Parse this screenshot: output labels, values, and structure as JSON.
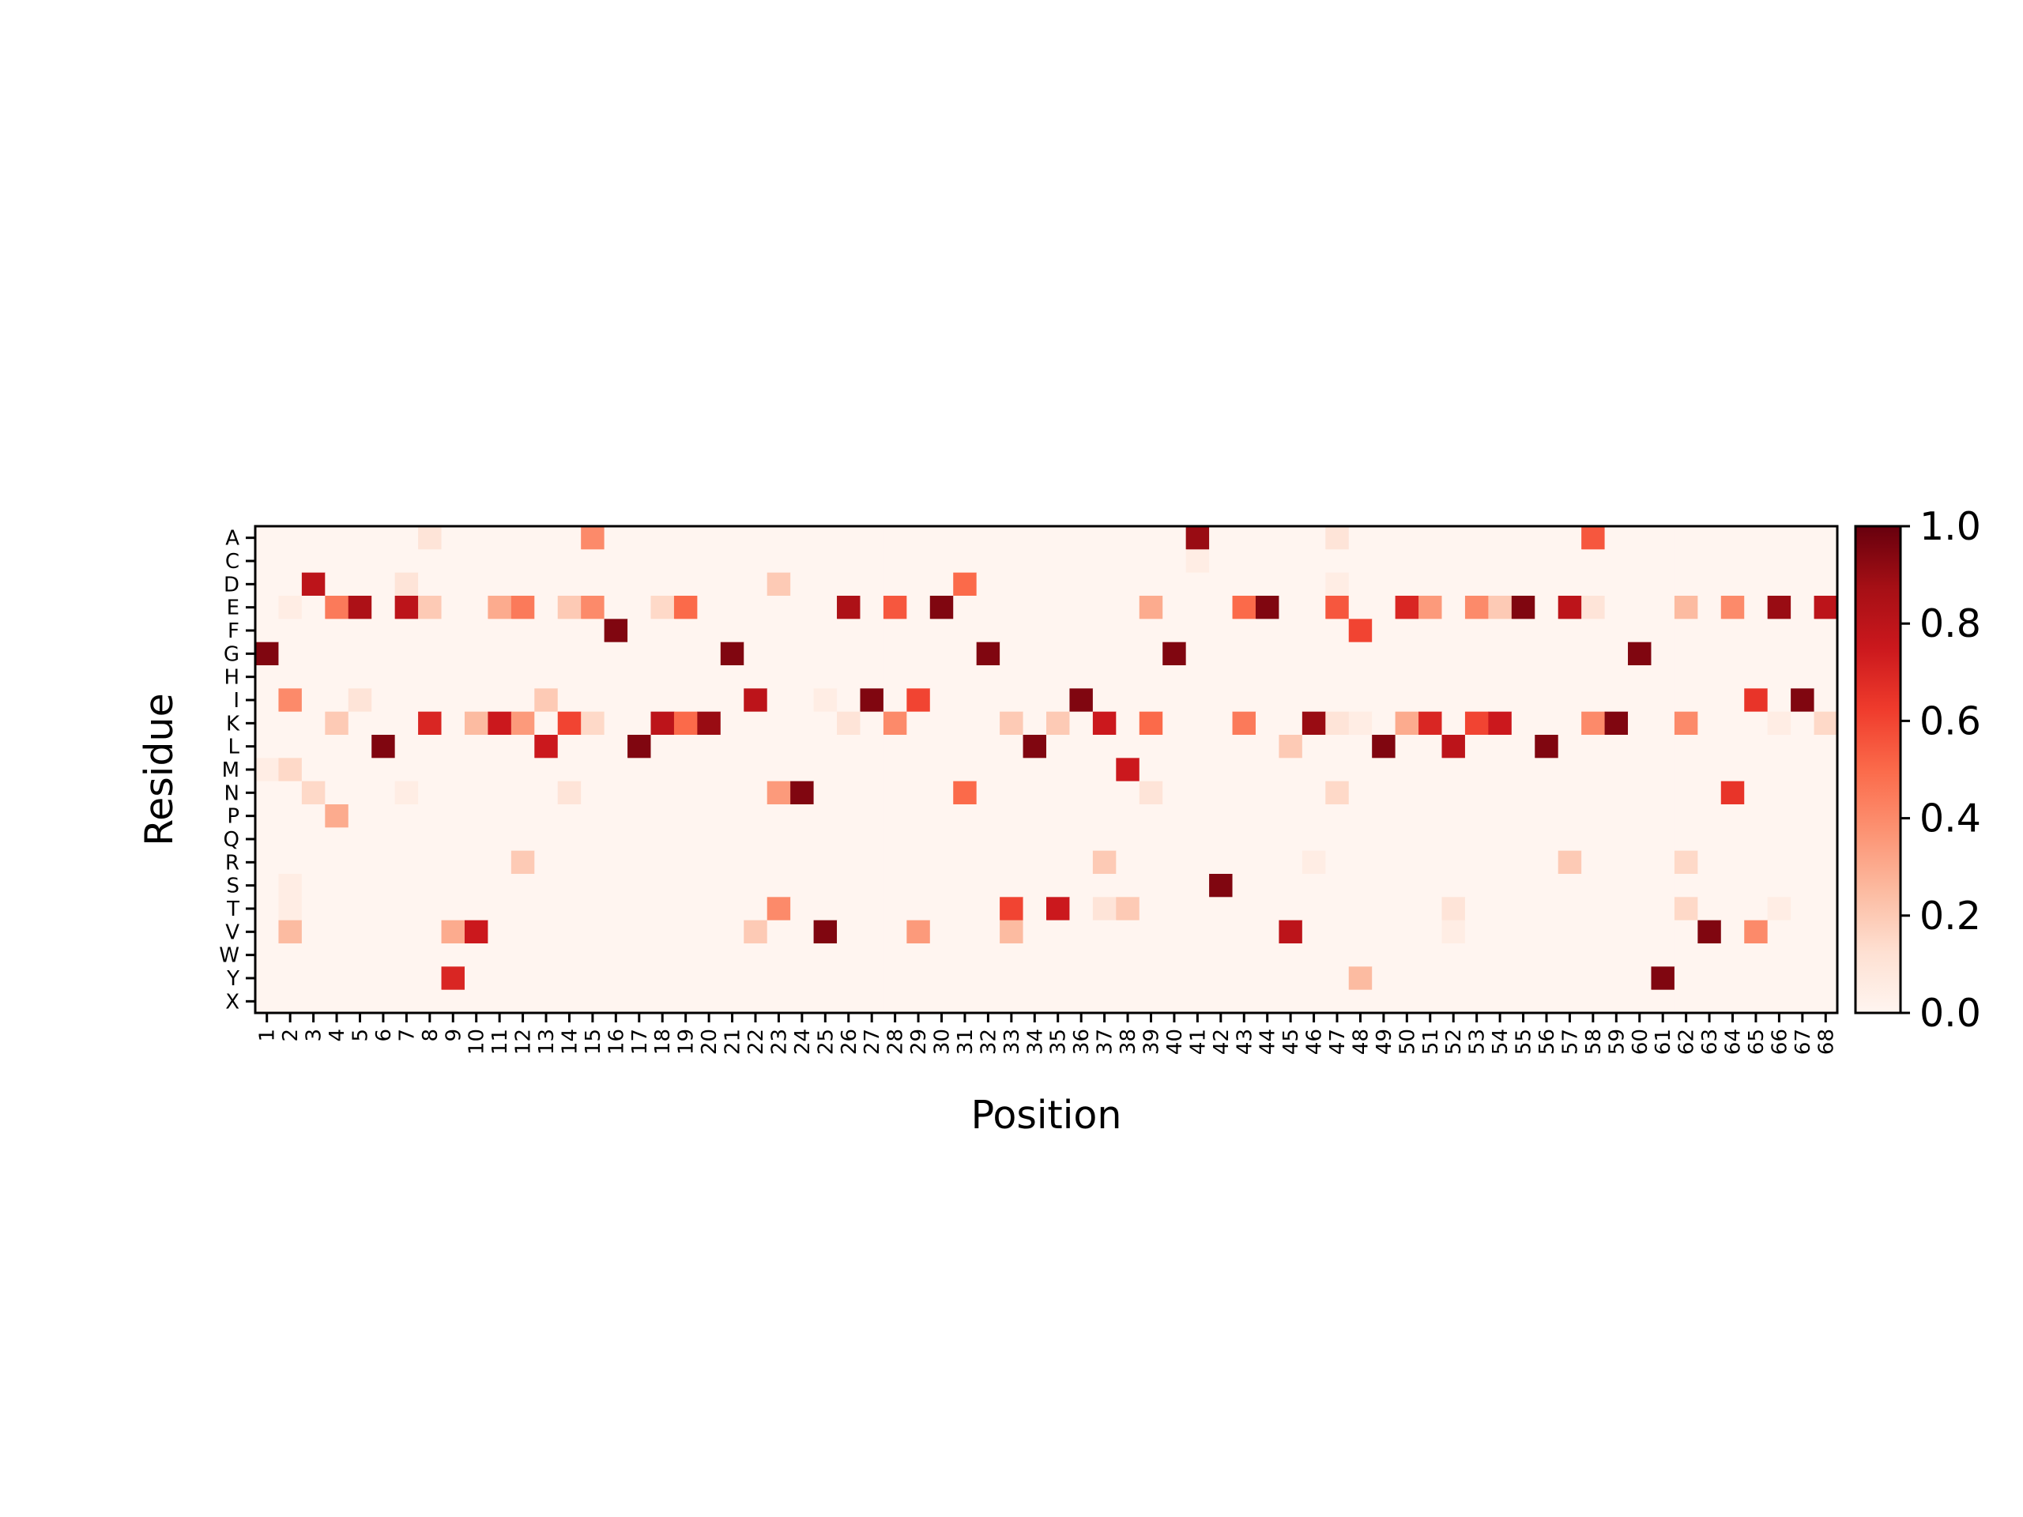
{
  "chart_data": {
    "type": "heatmap",
    "title": "",
    "xlabel": "Position",
    "ylabel": "Residue",
    "x_categories": [
      "1",
      "2",
      "3",
      "4",
      "5",
      "6",
      "7",
      "8",
      "9",
      "10",
      "11",
      "12",
      "13",
      "14",
      "15",
      "16",
      "17",
      "18",
      "19",
      "20",
      "21",
      "22",
      "23",
      "24",
      "25",
      "26",
      "27",
      "28",
      "29",
      "30",
      "31",
      "32",
      "33",
      "34",
      "35",
      "36",
      "37",
      "38",
      "39",
      "40",
      "41",
      "42",
      "43",
      "44",
      "45",
      "46",
      "47",
      "48",
      "49",
      "50",
      "51",
      "52",
      "53",
      "54",
      "55",
      "56",
      "57",
      "58",
      "59",
      "60",
      "61",
      "62",
      "63",
      "64",
      "65",
      "66",
      "67",
      "68"
    ],
    "y_categories": [
      "A",
      "C",
      "D",
      "E",
      "F",
      "G",
      "H",
      "I",
      "K",
      "L",
      "M",
      "N",
      "P",
      "Q",
      "R",
      "S",
      "T",
      "V",
      "W",
      "Y",
      "X"
    ],
    "colormap": [
      "#fff5f0",
      "#fee0d2",
      "#fcbba1",
      "#fc9272",
      "#fb6a4a",
      "#ef3b2c",
      "#cb181d",
      "#a50f15",
      "#67000d"
    ],
    "value_range": [
      0,
      1
    ],
    "colorbar_ticks": [
      "0.0",
      "0.2",
      "0.4",
      "0.6",
      "0.8",
      "1.0"
    ],
    "sparse_cells": [
      {
        "x": "1",
        "y": "G",
        "v": 0.95
      },
      {
        "x": "1",
        "y": "M",
        "v": 0.05
      },
      {
        "x": "2",
        "y": "E",
        "v": 0.05
      },
      {
        "x": "2",
        "y": "I",
        "v": 0.4
      },
      {
        "x": "2",
        "y": "M",
        "v": 0.15
      },
      {
        "x": "2",
        "y": "S",
        "v": 0.05
      },
      {
        "x": "2",
        "y": "T",
        "v": 0.05
      },
      {
        "x": "2",
        "y": "V",
        "v": 0.25
      },
      {
        "x": "3",
        "y": "D",
        "v": 0.8
      },
      {
        "x": "3",
        "y": "N",
        "v": 0.15
      },
      {
        "x": "4",
        "y": "E",
        "v": 0.45
      },
      {
        "x": "4",
        "y": "K",
        "v": 0.2
      },
      {
        "x": "4",
        "y": "P",
        "v": 0.3
      },
      {
        "x": "5",
        "y": "E",
        "v": 0.85
      },
      {
        "x": "5",
        "y": "I",
        "v": 0.1
      },
      {
        "x": "6",
        "y": "L",
        "v": 0.95
      },
      {
        "x": "7",
        "y": "D",
        "v": 0.1
      },
      {
        "x": "7",
        "y": "E",
        "v": 0.8
      },
      {
        "x": "7",
        "y": "N",
        "v": 0.05
      },
      {
        "x": "8",
        "y": "A",
        "v": 0.1
      },
      {
        "x": "8",
        "y": "E",
        "v": 0.2
      },
      {
        "x": "8",
        "y": "K",
        "v": 0.7
      },
      {
        "x": "9",
        "y": "V",
        "v": 0.3
      },
      {
        "x": "9",
        "y": "Y",
        "v": 0.7
      },
      {
        "x": "10",
        "y": "K",
        "v": 0.25
      },
      {
        "x": "10",
        "y": "V",
        "v": 0.75
      },
      {
        "x": "11",
        "y": "E",
        "v": 0.3
      },
      {
        "x": "11",
        "y": "K",
        "v": 0.75
      },
      {
        "x": "12",
        "y": "E",
        "v": 0.45
      },
      {
        "x": "12",
        "y": "K",
        "v": 0.35
      },
      {
        "x": "12",
        "y": "R",
        "v": 0.2
      },
      {
        "x": "13",
        "y": "I",
        "v": 0.2
      },
      {
        "x": "13",
        "y": "L",
        "v": 0.75
      },
      {
        "x": "14",
        "y": "E",
        "v": 0.2
      },
      {
        "x": "14",
        "y": "K",
        "v": 0.6
      },
      {
        "x": "14",
        "y": "N",
        "v": 0.1
      },
      {
        "x": "15",
        "y": "A",
        "v": 0.4
      },
      {
        "x": "15",
        "y": "E",
        "v": 0.4
      },
      {
        "x": "15",
        "y": "K",
        "v": 0.15
      },
      {
        "x": "16",
        "y": "F",
        "v": 0.95
      },
      {
        "x": "17",
        "y": "L",
        "v": 0.95
      },
      {
        "x": "18",
        "y": "E",
        "v": 0.15
      },
      {
        "x": "18",
        "y": "K",
        "v": 0.8
      },
      {
        "x": "19",
        "y": "E",
        "v": 0.5
      },
      {
        "x": "19",
        "y": "K",
        "v": 0.5
      },
      {
        "x": "20",
        "y": "K",
        "v": 0.9
      },
      {
        "x": "21",
        "y": "G",
        "v": 0.95
      },
      {
        "x": "22",
        "y": "I",
        "v": 0.8
      },
      {
        "x": "22",
        "y": "V",
        "v": 0.2
      },
      {
        "x": "23",
        "y": "D",
        "v": 0.2
      },
      {
        "x": "23",
        "y": "N",
        "v": 0.35
      },
      {
        "x": "23",
        "y": "T",
        "v": 0.4
      },
      {
        "x": "24",
        "y": "N",
        "v": 0.95
      },
      {
        "x": "25",
        "y": "I",
        "v": 0.05
      },
      {
        "x": "25",
        "y": "V",
        "v": 0.95
      },
      {
        "x": "26",
        "y": "E",
        "v": 0.85
      },
      {
        "x": "26",
        "y": "K",
        "v": 0.1
      },
      {
        "x": "27",
        "y": "I",
        "v": 0.95
      },
      {
        "x": "28",
        "y": "E",
        "v": 0.55
      },
      {
        "x": "28",
        "y": "K",
        "v": 0.4
      },
      {
        "x": "29",
        "y": "I",
        "v": 0.6
      },
      {
        "x": "29",
        "y": "V",
        "v": 0.35
      },
      {
        "x": "30",
        "y": "E",
        "v": 0.95
      },
      {
        "x": "31",
        "y": "D",
        "v": 0.5
      },
      {
        "x": "31",
        "y": "N",
        "v": 0.5
      },
      {
        "x": "32",
        "y": "G",
        "v": 0.95
      },
      {
        "x": "33",
        "y": "K",
        "v": 0.2
      },
      {
        "x": "33",
        "y": "T",
        "v": 0.6
      },
      {
        "x": "33",
        "y": "V",
        "v": 0.25
      },
      {
        "x": "34",
        "y": "L",
        "v": 0.95
      },
      {
        "x": "35",
        "y": "K",
        "v": 0.2
      },
      {
        "x": "35",
        "y": "T",
        "v": 0.75
      },
      {
        "x": "36",
        "y": "I",
        "v": 0.95
      },
      {
        "x": "37",
        "y": "K",
        "v": 0.75
      },
      {
        "x": "37",
        "y": "R",
        "v": 0.2
      },
      {
        "x": "37",
        "y": "T",
        "v": 0.1
      },
      {
        "x": "38",
        "y": "M",
        "v": 0.75
      },
      {
        "x": "38",
        "y": "T",
        "v": 0.2
      },
      {
        "x": "39",
        "y": "E",
        "v": 0.3
      },
      {
        "x": "39",
        "y": "K",
        "v": 0.5
      },
      {
        "x": "39",
        "y": "N",
        "v": 0.1
      },
      {
        "x": "40",
        "y": "G",
        "v": 0.95
      },
      {
        "x": "41",
        "y": "A",
        "v": 0.9
      },
      {
        "x": "41",
        "y": "C",
        "v": 0.05
      },
      {
        "x": "42",
        "y": "S",
        "v": 0.95
      },
      {
        "x": "43",
        "y": "E",
        "v": 0.5
      },
      {
        "x": "43",
        "y": "K",
        "v": 0.45
      },
      {
        "x": "44",
        "y": "E",
        "v": 0.95
      },
      {
        "x": "45",
        "y": "L",
        "v": 0.2
      },
      {
        "x": "45",
        "y": "V",
        "v": 0.8
      },
      {
        "x": "46",
        "y": "K",
        "v": 0.9
      },
      {
        "x": "46",
        "y": "R",
        "v": 0.05
      },
      {
        "x": "47",
        "y": "A",
        "v": 0.1
      },
      {
        "x": "47",
        "y": "D",
        "v": 0.05
      },
      {
        "x": "47",
        "y": "E",
        "v": 0.55
      },
      {
        "x": "47",
        "y": "K",
        "v": 0.1
      },
      {
        "x": "47",
        "y": "N",
        "v": 0.15
      },
      {
        "x": "48",
        "y": "F",
        "v": 0.6
      },
      {
        "x": "48",
        "y": "K",
        "v": 0.05
      },
      {
        "x": "48",
        "y": "Y",
        "v": 0.25
      },
      {
        "x": "49",
        "y": "L",
        "v": 0.95
      },
      {
        "x": "50",
        "y": "E",
        "v": 0.7
      },
      {
        "x": "50",
        "y": "K",
        "v": 0.3
      },
      {
        "x": "51",
        "y": "E",
        "v": 0.35
      },
      {
        "x": "51",
        "y": "K",
        "v": 0.7
      },
      {
        "x": "52",
        "y": "L",
        "v": 0.8
      },
      {
        "x": "52",
        "y": "T",
        "v": 0.1
      },
      {
        "x": "52",
        "y": "V",
        "v": 0.05
      },
      {
        "x": "53",
        "y": "E",
        "v": 0.4
      },
      {
        "x": "53",
        "y": "K",
        "v": 0.6
      },
      {
        "x": "54",
        "y": "E",
        "v": 0.2
      },
      {
        "x": "54",
        "y": "K",
        "v": 0.75
      },
      {
        "x": "55",
        "y": "E",
        "v": 0.95
      },
      {
        "x": "56",
        "y": "L",
        "v": 0.95
      },
      {
        "x": "57",
        "y": "E",
        "v": 0.8
      },
      {
        "x": "57",
        "y": "R",
        "v": 0.2
      },
      {
        "x": "58",
        "y": "A",
        "v": 0.55
      },
      {
        "x": "58",
        "y": "E",
        "v": 0.1
      },
      {
        "x": "58",
        "y": "K",
        "v": 0.4
      },
      {
        "x": "59",
        "y": "K",
        "v": 0.95
      },
      {
        "x": "60",
        "y": "G",
        "v": 0.95
      },
      {
        "x": "61",
        "y": "Y",
        "v": 0.95
      },
      {
        "x": "62",
        "y": "E",
        "v": 0.25
      },
      {
        "x": "62",
        "y": "K",
        "v": 0.4
      },
      {
        "x": "62",
        "y": "R",
        "v": 0.15
      },
      {
        "x": "62",
        "y": "T",
        "v": 0.15
      },
      {
        "x": "63",
        "y": "V",
        "v": 0.95
      },
      {
        "x": "64",
        "y": "E",
        "v": 0.4
      },
      {
        "x": "64",
        "y": "N",
        "v": 0.65
      },
      {
        "x": "65",
        "y": "I",
        "v": 0.65
      },
      {
        "x": "65",
        "y": "V",
        "v": 0.4
      },
      {
        "x": "66",
        "y": "E",
        "v": 0.9
      },
      {
        "x": "66",
        "y": "K",
        "v": 0.05
      },
      {
        "x": "66",
        "y": "T",
        "v": 0.05
      },
      {
        "x": "67",
        "y": "I",
        "v": 0.95
      },
      {
        "x": "68",
        "y": "E",
        "v": 0.8
      },
      {
        "x": "68",
        "y": "K",
        "v": 0.15
      }
    ],
    "background_value": 0.0,
    "grid": false,
    "legend": "none",
    "colorbar_position": "right"
  }
}
